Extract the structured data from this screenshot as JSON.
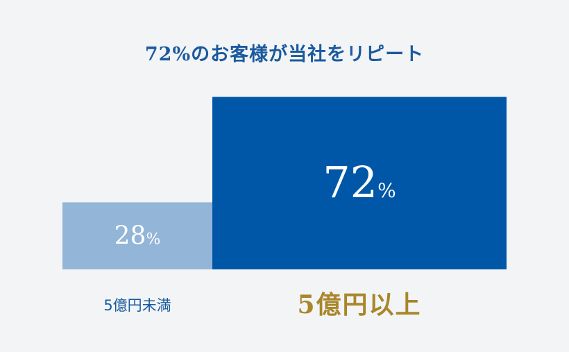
{
  "chart_data": {
    "type": "bar",
    "title": "72%のお客様が当社をリピート",
    "categories": [
      "5億円未満",
      "5億円以上"
    ],
    "values": [
      28,
      72
    ],
    "value_labels": [
      "28",
      "72"
    ],
    "value_unit": "%",
    "ylim": [
      0,
      100
    ]
  },
  "colors": {
    "title": "#1a5a9e",
    "bar_small": "#93b5d8",
    "bar_large": "#0057a8",
    "bar_text": "#ffffff",
    "label_small": "#1a5a9e",
    "label_large": "#a8862a"
  }
}
